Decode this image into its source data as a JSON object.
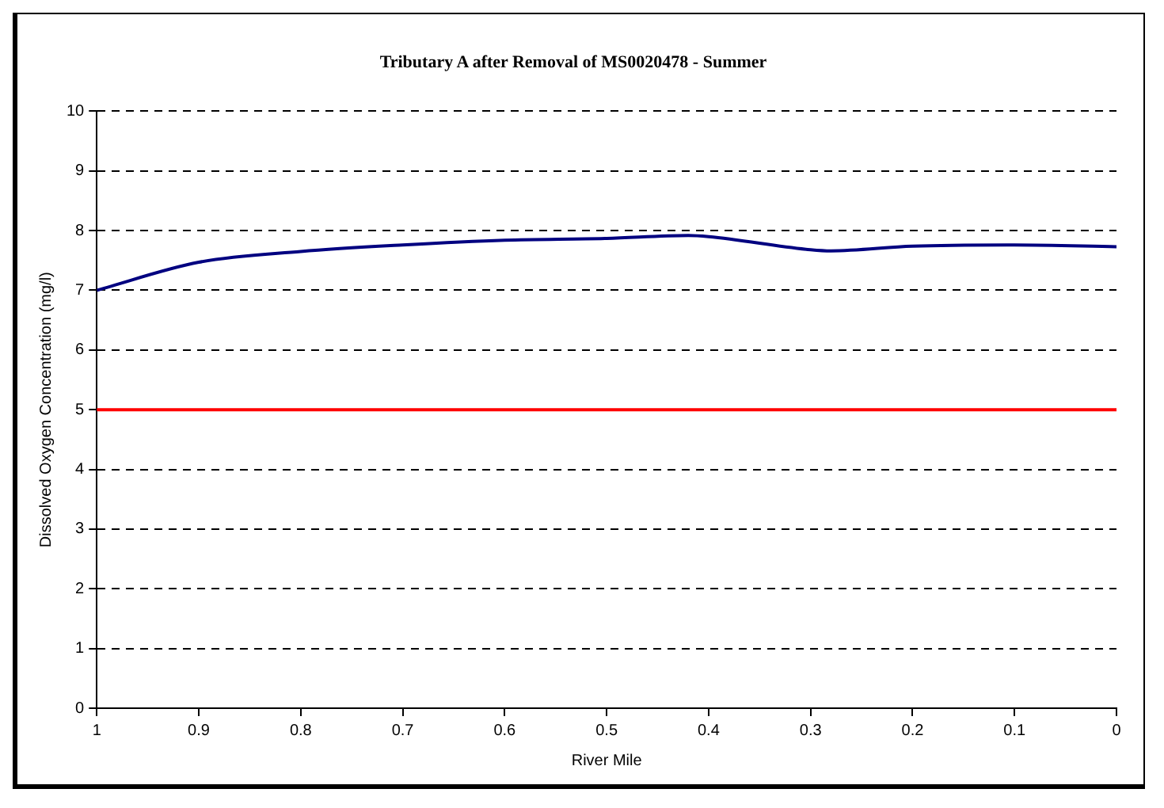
{
  "chart_data": {
    "type": "line",
    "title": "Tributary A after Removal of MS0020478 - Summer",
    "xlabel": "River Mile",
    "ylabel": "Dissolved Oxygen Concentration (mg/l)",
    "x": [
      1,
      0.9,
      0.8,
      0.7,
      0.6,
      0.5,
      0.42,
      0.4,
      0.3,
      0.28,
      0.2,
      0.1,
      0
    ],
    "series": [
      {
        "color": "#000080",
        "values": [
          7.0,
          7.47,
          7.65,
          7.76,
          7.84,
          7.87,
          7.92,
          7.9,
          7.68,
          7.66,
          7.74,
          7.76,
          7.73
        ]
      }
    ],
    "xlim": [
      1,
      0
    ],
    "xticks": [
      1,
      0.9,
      0.8,
      0.7,
      0.6,
      0.5,
      0.4,
      0.3,
      0.2,
      0.1,
      0
    ],
    "ylim": [
      0,
      10
    ],
    "yticks": [
      0,
      1,
      2,
      3,
      4,
      5,
      6,
      7,
      8,
      9,
      10
    ],
    "grid": "y",
    "marker": "none",
    "line_style": "solid",
    "legend": false,
    "ref_lines": [
      {
        "axis": "y",
        "value": 5,
        "color": "#ff0000"
      }
    ]
  }
}
